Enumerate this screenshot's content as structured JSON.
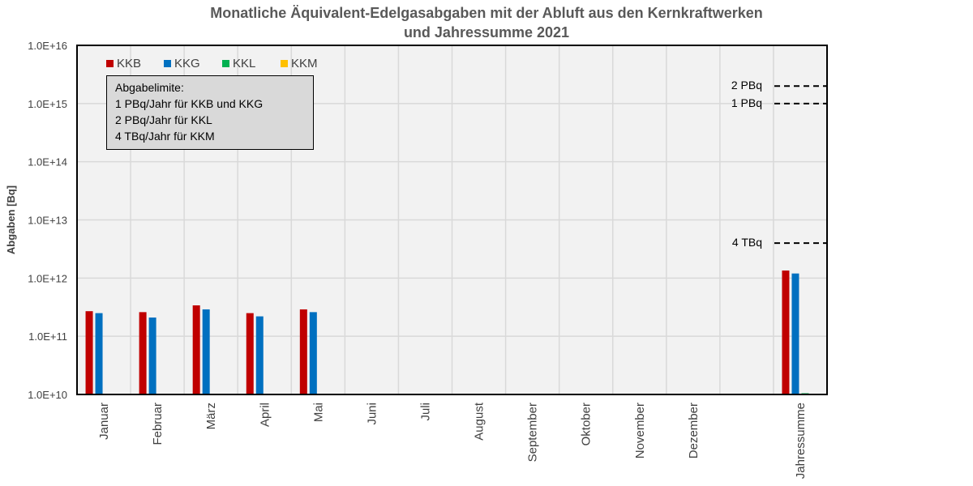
{
  "chart_data": {
    "type": "bar",
    "title_line1": "Monatliche Äquivalent-Edelgasabgaben mit der Abluft aus den Kernkraftwerken",
    "title_line2": "und Jahressumme 2021",
    "ylabel": "Abgaben [Bq]",
    "xlabel": "",
    "y_scale": "log",
    "ylim": [
      10000000000.0,
      1e+16
    ],
    "y_ticks": [
      "1.0E+10",
      "1.0E+11",
      "1.0E+12",
      "1.0E+13",
      "1.0E+14",
      "1.0E+15",
      "1.0E+16"
    ],
    "categories": [
      "Januar",
      "Februar",
      "März",
      "April",
      "Mai",
      "Juni",
      "Juli",
      "August",
      "September",
      "Oktober",
      "November",
      "Dezember",
      "",
      "Jahressumme"
    ],
    "series": [
      {
        "name": "KKB",
        "color": "#c00000",
        "values": [
          270000000000.0,
          260000000000.0,
          340000000000.0,
          250000000000.0,
          290000000000.0,
          null,
          null,
          null,
          null,
          null,
          null,
          null,
          null,
          1350000000000.0
        ]
      },
      {
        "name": "KKG",
        "color": "#0070c0",
        "values": [
          250000000000.0,
          210000000000.0,
          290000000000.0,
          220000000000.0,
          260000000000.0,
          null,
          null,
          null,
          null,
          null,
          null,
          null,
          null,
          1200000000000.0
        ]
      },
      {
        "name": "KKL",
        "color": "#00b050",
        "values": [
          null,
          null,
          null,
          null,
          null,
          null,
          null,
          null,
          null,
          null,
          null,
          null,
          null,
          10500000000.0
        ]
      },
      {
        "name": "KKM",
        "color": "#ffc000",
        "values": [
          null,
          null,
          null,
          null,
          null,
          null,
          null,
          null,
          null,
          null,
          null,
          null,
          null,
          null
        ]
      }
    ],
    "limits_box": {
      "heading": "Abgabelimite:",
      "lines": [
        "1 PBq/Jahr für KKB und KKG",
        "2 PBq/Jahr für KKL",
        "4 TBq/Jahr für KKM"
      ]
    },
    "reference_lines": [
      {
        "label": "2 PBq",
        "value": 2000000000000000.0
      },
      {
        "label": "1 PBq",
        "value": 1000000000000000.0
      },
      {
        "label": "4 TBq",
        "value": 4000000000000.0
      }
    ],
    "grid": true,
    "legend_position": "top-left",
    "plot_background": "#f2f2f2"
  }
}
